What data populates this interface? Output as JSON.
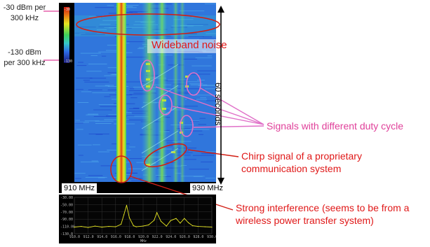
{
  "chart_data": [
    {
      "type": "heatmap",
      "title": "",
      "xlabel": "",
      "ylabel": "",
      "x_range_labels": [
        "910 MHz",
        "930 MHz"
      ],
      "color_scale": {
        "top_label": "-30 dBm per 300 kHz",
        "bottom_label": "-130 dBm per 300 kHz",
        "bar_top_tick": "-30",
        "bar_bottom_tick": "-130"
      },
      "time_span": "60 seconds",
      "colors": [
        "#1434c8",
        "#2d6ae6",
        "#3d9be6",
        "#35c8c8",
        "#3ed25a",
        "#e6e620",
        "#e67a14",
        "#d21e14"
      ],
      "annotations": [
        "Wideband noise",
        "Signals with different duty cycle",
        "Chirp signal of a proprietary communication system",
        "Strong interference (seems to be from a wireless power transfer system)"
      ]
    },
    {
      "type": "line",
      "x": [
        910.0,
        912.0,
        914.0,
        916.0,
        918.0,
        920.0,
        922.0,
        924.0,
        926.0,
        928.0,
        930.0
      ],
      "y_ticks": [
        "-30.00",
        "-50.00",
        "-70.00",
        "-90.00",
        "-110.00",
        "-130.0"
      ],
      "x_ticks": [
        "910.0",
        "912.0",
        "914.0",
        "916.0",
        "918.0",
        "920.0",
        "922.0",
        "924.0",
        "926.0",
        "928.0",
        "930.0"
      ],
      "xlabel": "MHz",
      "ylim": [
        -130,
        -30
      ],
      "series": [
        {
          "x": [
            910,
            911,
            912,
            913,
            914,
            915,
            916,
            916.8,
            917.2,
            917.6,
            918,
            918.6,
            919,
            920,
            920.8,
            921.6,
            922,
            922.6,
            923.4,
            924,
            924.8,
            925.4,
            926,
            926.6,
            927.2,
            928,
            929,
            930
          ],
          "values": [
            -112,
            -110,
            -113,
            -109,
            -112,
            -110,
            -111,
            -104,
            -78,
            -52,
            -86,
            -108,
            -111,
            -109,
            -106,
            -93,
            -72,
            -96,
            -109,
            -94,
            -88,
            -101,
            -88,
            -100,
            -108,
            -110,
            -111,
            -112
          ]
        }
      ]
    }
  ]
}
